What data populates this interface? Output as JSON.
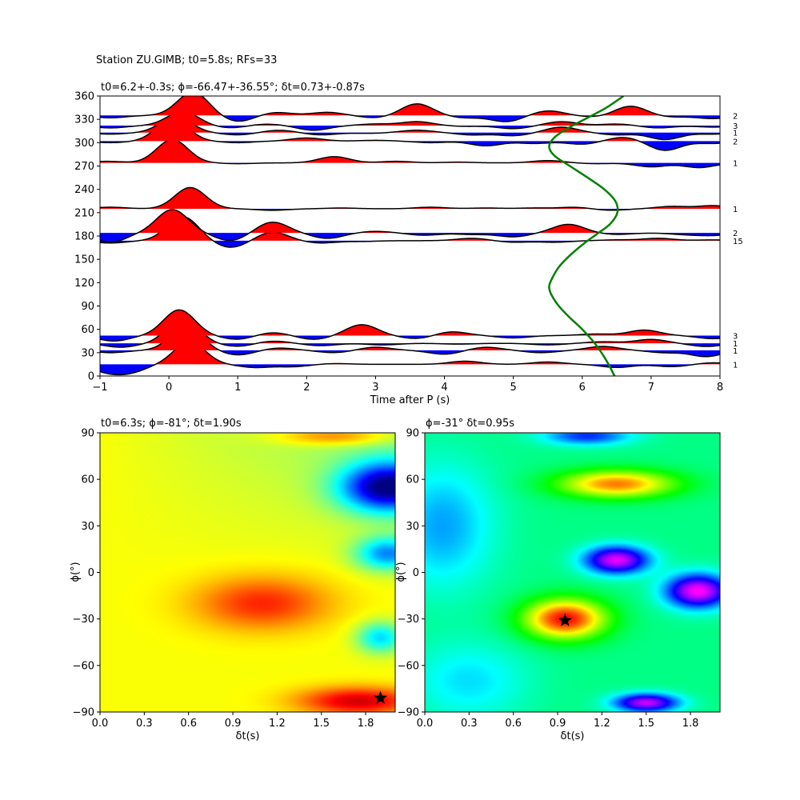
{
  "figure": {
    "suptitle": "Station ZU.GIMB; t0=5.8s; RFs=33"
  },
  "chart_data": [
    {
      "type": "line",
      "panel": "receiver-function-traces",
      "title": "t0=6.2+-0.3s; ϕ=-66.47+-36.55°; δt=0.73+-0.87s",
      "xlabel": "Time after P (s)",
      "ylabel": "",
      "xlim": [
        -1,
        8
      ],
      "ylim": [
        0,
        360
      ],
      "xticks": [
        -1,
        0,
        1,
        2,
        3,
        4,
        5,
        6,
        7,
        8
      ],
      "yticks": [
        0,
        30,
        60,
        90,
        120,
        150,
        180,
        210,
        240,
        270,
        300,
        330,
        360
      ],
      "fill_positive": "#ff0000",
      "fill_negative": "#0000ff",
      "trace_color": "#000000",
      "traces": [
        {
          "baz": 15,
          "count": "1",
          "peaks": [
            [
              -0.9,
              -9
            ],
            [
              -0.55,
              -9
            ],
            [
              0.3,
              29
            ],
            [
              1.25,
              -4
            ],
            [
              1.8,
              -3
            ],
            [
              2.4,
              1
            ],
            [
              4.3,
              4
            ],
            [
              5.5,
              3
            ],
            [
              6.5,
              -4
            ],
            [
              7.3,
              -3
            ],
            [
              7.9,
              2
            ]
          ]
        },
        {
          "baz": 33,
          "count": "1",
          "peaks": [
            [
              -0.85,
              -3
            ],
            [
              0.25,
              31
            ],
            [
              1.0,
              -6
            ],
            [
              1.6,
              3
            ],
            [
              2.4,
              -3
            ],
            [
              3.0,
              4
            ],
            [
              4.0,
              -5
            ],
            [
              4.6,
              4
            ],
            [
              5.4,
              -3
            ],
            [
              6.3,
              5
            ],
            [
              7.2,
              -3
            ],
            [
              7.8,
              -8
            ]
          ]
        },
        {
          "baz": 42,
          "count": "1",
          "peaks": [
            [
              -0.7,
              -5
            ],
            [
              0.2,
              32
            ],
            [
              1.0,
              -4
            ],
            [
              1.5,
              3
            ],
            [
              2.2,
              -3
            ],
            [
              3.1,
              -2
            ],
            [
              4.2,
              -1
            ],
            [
              5.5,
              -2
            ],
            [
              6.3,
              2
            ],
            [
              7.0,
              5
            ],
            [
              7.8,
              -4
            ]
          ]
        },
        {
          "baz": 52,
          "count": "3",
          "peaks": [
            [
              -0.8,
              -7
            ],
            [
              0.15,
              33
            ],
            [
              1.0,
              -5
            ],
            [
              1.5,
              4
            ],
            [
              2.1,
              -5
            ],
            [
              2.8,
              14
            ],
            [
              3.6,
              -4
            ],
            [
              4.1,
              5
            ],
            [
              5.0,
              -3
            ],
            [
              6.2,
              2
            ],
            [
              6.9,
              7
            ],
            [
              7.9,
              -4
            ]
          ]
        },
        {
          "baz": 174,
          "count": "15",
          "peaks": [
            [
              -0.85,
              -3
            ],
            [
              0.2,
              31
            ],
            [
              0.9,
              -9
            ],
            [
              1.5,
              11
            ],
            [
              2.2,
              -3
            ],
            [
              2.8,
              -1
            ],
            [
              4.4,
              3
            ],
            [
              5.0,
              -2
            ],
            [
              5.6,
              -2
            ],
            [
              6.5,
              1
            ],
            [
              7.1,
              3
            ],
            [
              7.9,
              1
            ]
          ]
        },
        {
          "baz": 184,
          "count": "2",
          "peaks": [
            [
              -0.85,
              -12
            ],
            [
              0.05,
              30
            ],
            [
              0.9,
              -10
            ],
            [
              1.5,
              14
            ],
            [
              2.3,
              -7
            ],
            [
              3.0,
              2
            ],
            [
              3.7,
              -3
            ],
            [
              4.4,
              -2
            ],
            [
              5.0,
              -5
            ],
            [
              5.8,
              11
            ],
            [
              6.5,
              -2
            ],
            [
              7.5,
              -2
            ],
            [
              7.9,
              -3
            ]
          ]
        },
        {
          "baz": 215,
          "count": "1",
          "peaks": [
            [
              -0.85,
              2
            ],
            [
              0.2,
              -3
            ],
            [
              0.3,
              30
            ],
            [
              1.5,
              -2
            ],
            [
              2.5,
              1
            ],
            [
              3.8,
              2
            ],
            [
              4.6,
              1
            ],
            [
              5.3,
              1
            ],
            [
              5.9,
              2
            ],
            [
              6.4,
              -2
            ],
            [
              7.3,
              3
            ],
            [
              7.9,
              4
            ]
          ]
        },
        {
          "baz": 274,
          "count": "1",
          "peaks": [
            [
              -0.9,
              2
            ],
            [
              0.05,
              30
            ],
            [
              1.0,
              -1
            ],
            [
              2.4,
              8
            ],
            [
              3.3,
              2
            ],
            [
              4.2,
              1
            ],
            [
              5.5,
              3
            ],
            [
              6.2,
              -1
            ],
            [
              7.0,
              -5
            ],
            [
              7.7,
              -6
            ]
          ]
        },
        {
          "baz": 302,
          "count": "2",
          "peaks": [
            [
              -0.85,
              -2
            ],
            [
              0.05,
              29
            ],
            [
              1.0,
              -2
            ],
            [
              2.0,
              4
            ],
            [
              3.0,
              1
            ],
            [
              3.8,
              -2
            ],
            [
              4.6,
              -6
            ],
            [
              5.3,
              -3
            ],
            [
              6.0,
              -4
            ],
            [
              6.6,
              5
            ],
            [
              7.2,
              -12
            ],
            [
              7.9,
              -3
            ]
          ]
        },
        {
          "baz": 313,
          "count": "1",
          "peaks": [
            [
              -0.85,
              -2
            ],
            [
              0.1,
              20
            ],
            [
              1.0,
              -3
            ],
            [
              1.6,
              3
            ],
            [
              2.2,
              -3
            ],
            [
              2.9,
              -1
            ],
            [
              3.6,
              3
            ],
            [
              4.4,
              -3
            ],
            [
              5.0,
              -4
            ],
            [
              5.7,
              7
            ],
            [
              6.5,
              -3
            ],
            [
              7.2,
              -9
            ],
            [
              7.9,
              -2
            ]
          ]
        },
        {
          "baz": 322,
          "count": "3",
          "peaks": [
            [
              -0.85,
              -3
            ],
            [
              0.2,
              18
            ],
            [
              0.9,
              -3
            ],
            [
              1.4,
              2
            ],
            [
              2.1,
              -6
            ],
            [
              3.0,
              2
            ],
            [
              3.6,
              5
            ],
            [
              4.3,
              -1
            ],
            [
              5.0,
              -4
            ],
            [
              5.7,
              5
            ],
            [
              6.5,
              2
            ],
            [
              7.1,
              -3
            ],
            [
              7.9,
              -2
            ]
          ]
        },
        {
          "baz": 335,
          "count": "2",
          "peaks": [
            [
              -0.85,
              -3
            ],
            [
              0.35,
              30
            ],
            [
              1.0,
              -8
            ],
            [
              1.55,
              4
            ],
            [
              2.3,
              4
            ],
            [
              3.0,
              -3
            ],
            [
              3.6,
              15
            ],
            [
              4.3,
              -3
            ],
            [
              4.9,
              -8
            ],
            [
              5.5,
              6
            ],
            [
              6.2,
              -2
            ],
            [
              6.7,
              12
            ],
            [
              7.3,
              -2
            ],
            [
              7.9,
              -4
            ]
          ]
        }
      ],
      "overlay_curve": {
        "color": "#008000",
        "points": [
          [
            6.47,
            0
          ],
          [
            6.35,
            20
          ],
          [
            6.2,
            40
          ],
          [
            6.0,
            60
          ],
          [
            5.82,
            75
          ],
          [
            5.66,
            90
          ],
          [
            5.55,
            105
          ],
          [
            5.52,
            115
          ],
          [
            5.56,
            125
          ],
          [
            5.66,
            140
          ],
          [
            5.82,
            155
          ],
          [
            6.02,
            170
          ],
          [
            6.22,
            183
          ],
          [
            6.4,
            195
          ],
          [
            6.51,
            210
          ],
          [
            6.48,
            225
          ],
          [
            6.32,
            240
          ],
          [
            6.08,
            255
          ],
          [
            5.82,
            270
          ],
          [
            5.6,
            283
          ],
          [
            5.52,
            295
          ],
          [
            5.6,
            307
          ],
          [
            5.82,
            320
          ],
          [
            6.1,
            333
          ],
          [
            6.35,
            345
          ],
          [
            6.6,
            360
          ]
        ]
      }
    },
    {
      "type": "heatmap",
      "panel": "energy-map-left",
      "title": "t0=6.3s; ϕ=-81°; δt=1.90s",
      "xlabel": "δt(s)",
      "ylabel": "ϕ(°)",
      "xlim": [
        0,
        2
      ],
      "ylim": [
        -90,
        90
      ],
      "xticks": [
        "0.0",
        "0.3",
        "0.6",
        "0.9",
        "1.2",
        "1.5",
        "1.8"
      ],
      "yticks": [
        -90,
        -60,
        -30,
        0,
        30,
        60,
        90
      ],
      "colormap": "jet",
      "background_value": 0.62,
      "blobs": [
        {
          "dt": 1.95,
          "phi": 55,
          "sdt": 0.32,
          "sphi": 16,
          "amp": -0.58
        },
        {
          "dt": 1.95,
          "phi": 12,
          "sdt": 0.22,
          "sphi": 11,
          "amp": -0.35
        },
        {
          "dt": 1.9,
          "phi": -42,
          "sdt": 0.16,
          "sphi": 10,
          "amp": -0.28
        },
        {
          "dt": 1.1,
          "phi": -20,
          "sdt": 0.45,
          "sphi": 17,
          "amp": 0.22
        },
        {
          "dt": 1.75,
          "phi": -83,
          "sdt": 0.4,
          "sphi": 9,
          "amp": 0.3
        },
        {
          "dt": 1.6,
          "phi": 88,
          "sdt": 0.4,
          "sphi": 6,
          "amp": 0.2
        }
      ],
      "best": {
        "dt": 1.9,
        "phi": -81
      }
    },
    {
      "type": "heatmap",
      "panel": "energy-map-right",
      "title": "ϕ=-31° δt=0.95s",
      "xlabel": "δt(s)",
      "ylabel": "ϕ(°)",
      "xlim": [
        0,
        2
      ],
      "ylim": [
        -90,
        90
      ],
      "xticks": [
        "0.0",
        "0.3",
        "0.6",
        "0.9",
        "1.2",
        "1.5",
        "1.8"
      ],
      "yticks": [
        -90,
        -60,
        -30,
        0,
        30,
        60,
        90
      ],
      "colormap": "hsv",
      "background_value": 0.42,
      "blobs": [
        {
          "dt": 0.95,
          "phi": -30,
          "sdt": 0.28,
          "sphi": 13,
          "amp": -0.42
        },
        {
          "dt": 1.3,
          "phi": 57,
          "sdt": 0.4,
          "sphi": 9,
          "amp": -0.34
        },
        {
          "dt": 1.3,
          "phi": 8,
          "sdt": 0.22,
          "sphi": 9,
          "amp": 0.4
        },
        {
          "dt": 1.85,
          "phi": -12,
          "sdt": 0.22,
          "sphi": 11,
          "amp": 0.42
        },
        {
          "dt": 1.5,
          "phi": -84,
          "sdt": 0.22,
          "sphi": 6,
          "amp": 0.38
        },
        {
          "dt": 0.12,
          "phi": 30,
          "sdt": 0.35,
          "sphi": 40,
          "amp": 0.14
        },
        {
          "dt": 1.1,
          "phi": 88,
          "sdt": 0.3,
          "sphi": 6,
          "amp": 0.22
        },
        {
          "dt": 0.3,
          "phi": -70,
          "sdt": 0.4,
          "sphi": 25,
          "amp": 0.1
        }
      ],
      "best": {
        "dt": 0.95,
        "phi": -31
      }
    }
  ]
}
